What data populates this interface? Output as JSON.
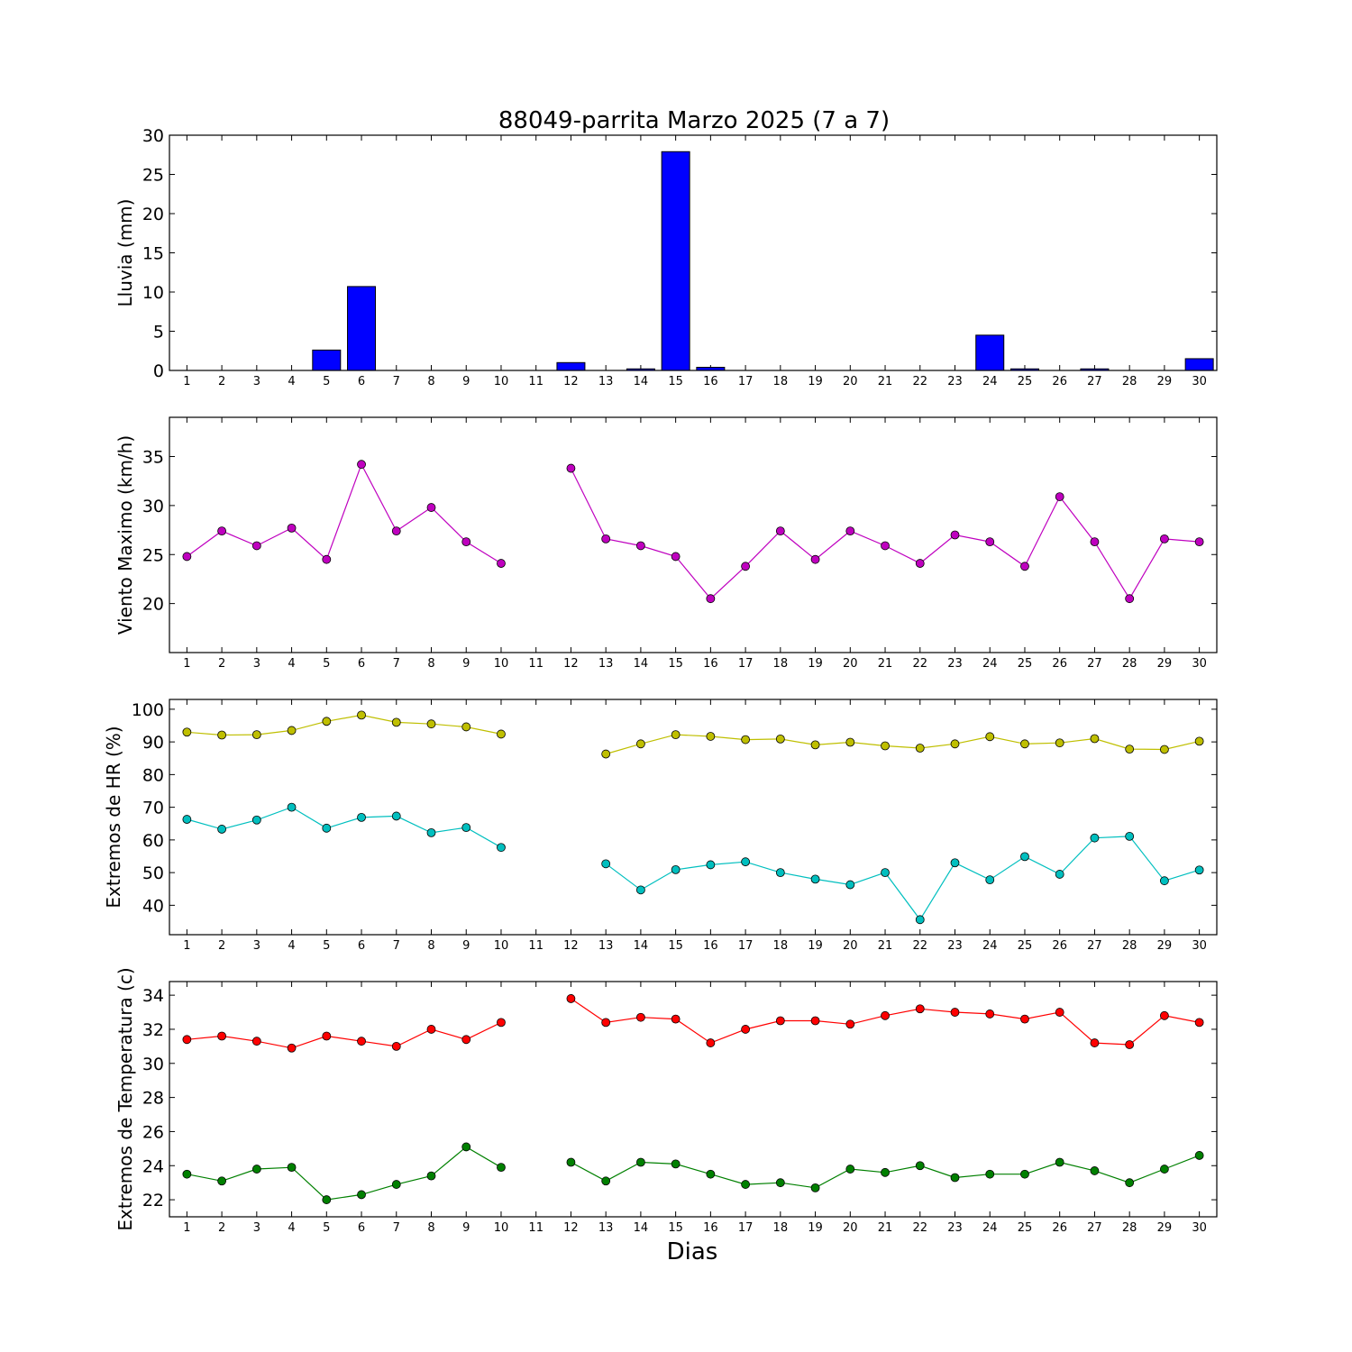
{
  "figure": {
    "title": "88049-parrita Marzo 2025  (7 a 7)",
    "xlabel": "Dias"
  },
  "chart_data": [
    {
      "type": "bar",
      "ylabel": "Lluvia (mm)",
      "ylim": [
        0,
        30
      ],
      "yticks": [
        0,
        5,
        10,
        15,
        20,
        25,
        30
      ],
      "categories": [
        1,
        2,
        3,
        4,
        5,
        6,
        7,
        8,
        9,
        10,
        11,
        12,
        13,
        14,
        15,
        16,
        17,
        18,
        19,
        20,
        21,
        22,
        23,
        24,
        25,
        26,
        27,
        28,
        29,
        30
      ],
      "series": [
        {
          "color": "#0000ff",
          "values": [
            0,
            0,
            0,
            0,
            2.6,
            10.7,
            0,
            0,
            0,
            0,
            0,
            1.0,
            0,
            0.2,
            27.9,
            0.4,
            0,
            0,
            0,
            0,
            0,
            0,
            0,
            4.5,
            0.2,
            0,
            0.2,
            0,
            0,
            1.5
          ]
        }
      ]
    },
    {
      "type": "line",
      "ylabel": "Viento Maximo (km/h)",
      "ylim": [
        15,
        39
      ],
      "yticks": [
        20,
        25,
        30,
        35
      ],
      "x": [
        1,
        2,
        3,
        4,
        5,
        6,
        7,
        8,
        9,
        10,
        11,
        12,
        13,
        14,
        15,
        16,
        17,
        18,
        19,
        20,
        21,
        22,
        23,
        24,
        25,
        26,
        27,
        28,
        29,
        30
      ],
      "series": [
        {
          "color": "#bf00bf",
          "values": [
            24.8,
            27.4,
            25.9,
            27.7,
            24.5,
            34.2,
            27.4,
            29.8,
            26.3,
            24.1,
            null,
            33.8,
            26.6,
            25.9,
            24.8,
            20.5,
            23.8,
            27.4,
            24.5,
            27.4,
            25.9,
            24.1,
            27.0,
            26.3,
            23.8,
            30.9,
            26.3,
            20.5,
            26.6,
            26.3
          ]
        }
      ]
    },
    {
      "type": "line",
      "ylabel": "Extremos de HR (%)",
      "ylim": [
        31,
        103
      ],
      "yticks": [
        40,
        50,
        60,
        70,
        80,
        90,
        100
      ],
      "x": [
        1,
        2,
        3,
        4,
        5,
        6,
        7,
        8,
        9,
        10,
        11,
        12,
        13,
        14,
        15,
        16,
        17,
        18,
        19,
        20,
        21,
        22,
        23,
        24,
        25,
        26,
        27,
        28,
        29,
        30
      ],
      "series": [
        {
          "color": "#bfbf00",
          "values": [
            93.0,
            92.1,
            92.2,
            93.5,
            96.3,
            98.2,
            96.0,
            95.5,
            94.6,
            92.4,
            null,
            null,
            86.3,
            89.4,
            92.2,
            91.7,
            90.7,
            90.9,
            89.1,
            89.9,
            88.8,
            88.1,
            89.4,
            91.6,
            89.4,
            89.7,
            91.0,
            87.8,
            87.7,
            90.2
          ]
        },
        {
          "color": "#00bfbf",
          "values": [
            66.3,
            63.3,
            66.1,
            70.0,
            63.6,
            66.9,
            67.3,
            62.2,
            63.8,
            57.7,
            null,
            null,
            52.7,
            44.7,
            50.9,
            52.4,
            53.3,
            50.0,
            48.0,
            46.3,
            50.0,
            35.6,
            53.0,
            47.8,
            54.9,
            49.5,
            60.6,
            61.1,
            47.5,
            50.8
          ]
        }
      ]
    },
    {
      "type": "line",
      "ylabel": "Extremos de Temperatura (c)",
      "ylim": [
        21,
        34.8
      ],
      "yticks": [
        22,
        24,
        26,
        28,
        30,
        32,
        34
      ],
      "x": [
        1,
        2,
        3,
        4,
        5,
        6,
        7,
        8,
        9,
        10,
        11,
        12,
        13,
        14,
        15,
        16,
        17,
        18,
        19,
        20,
        21,
        22,
        23,
        24,
        25,
        26,
        27,
        28,
        29,
        30
      ],
      "series": [
        {
          "color": "#ff0000",
          "values": [
            31.4,
            31.6,
            31.3,
            30.9,
            31.6,
            31.3,
            31.0,
            32.0,
            31.4,
            32.4,
            null,
            33.8,
            32.4,
            32.7,
            32.6,
            31.2,
            32.0,
            32.5,
            32.5,
            32.3,
            32.8,
            33.2,
            33.0,
            32.9,
            32.6,
            33.0,
            31.2,
            31.1,
            32.8,
            32.4
          ]
        },
        {
          "color": "#008000",
          "values": [
            23.5,
            23.1,
            23.8,
            23.9,
            22.0,
            22.3,
            22.9,
            23.4,
            25.1,
            23.9,
            null,
            24.2,
            23.1,
            24.2,
            24.1,
            23.5,
            22.9,
            23.0,
            22.7,
            23.8,
            23.6,
            24.0,
            23.3,
            23.5,
            23.5,
            24.2,
            23.7,
            23.0,
            23.8,
            24.6
          ]
        }
      ]
    }
  ]
}
